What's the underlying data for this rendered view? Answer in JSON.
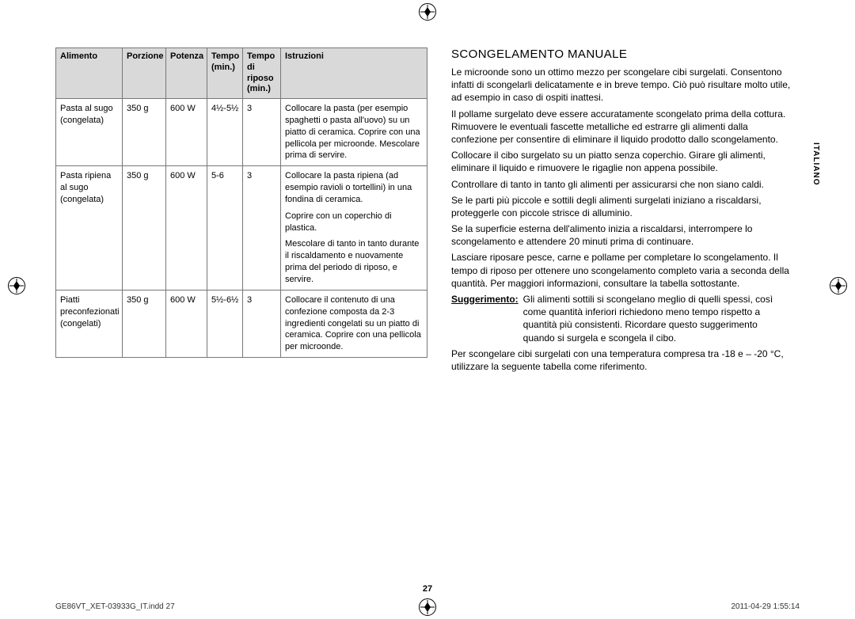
{
  "side_tab": "ITALIANO",
  "page_number": "27",
  "footer_left": "GE86VT_XET-03933G_IT.indd   27",
  "footer_right": "2011-04-29   1:55:14",
  "table": {
    "headers": {
      "alimento": "Alimento",
      "porzione": "Porzione",
      "potenza": "Potenza",
      "tempo": "Tempo (min.)",
      "riposo": "Tempo di riposo (min.)",
      "istruzioni": "Istruzioni"
    },
    "rows": [
      {
        "alimento": "Pasta al sugo (congelata)",
        "porzione": "350 g",
        "potenza": "600 W",
        "tempo": "4½-5½",
        "riposo": "3",
        "istr": [
          "Collocare la pasta (per esempio spaghetti o pasta all'uovo) su un piatto di ceramica. Coprire con una pellicola per microonde. Mescolare prima di servire."
        ]
      },
      {
        "alimento": "Pasta ripiena al sugo (congelata)",
        "porzione": "350 g",
        "potenza": "600 W",
        "tempo": "5-6",
        "riposo": "3",
        "istr": [
          "Collocare la pasta ripiena (ad esempio ravioli o tortellini) in una fondina di ceramica.",
          "Coprire con un coperchio di plastica.",
          "Mescolare di tanto in tanto durante il riscaldamento e nuovamente prima del periodo di riposo, e servire."
        ]
      },
      {
        "alimento": "Piatti preconfezionati (congelati)",
        "porzione": "350 g",
        "potenza": "600 W",
        "tempo": "5½-6½",
        "riposo": "3",
        "istr": [
          "Collocare il contenuto di una confezione composta da 2-3 ingredienti congelati su un piatto di ceramica. Coprire con una pellicola per microonde."
        ]
      }
    ]
  },
  "right": {
    "title": "SCONGELAMENTO MANUALE",
    "paras": [
      "Le microonde sono un ottimo mezzo per scongelare cibi surgelati. Consentono infatti di scongelarli delicatamente e in breve tempo. Ciò può risultare molto utile, ad esempio in caso di ospiti inattesi.",
      "Il pollame surgelato deve essere accuratamente scongelato prima della cottura. Rimuovere le eventuali fascette metalliche ed estrarre gli alimenti dalla confezione per consentire di eliminare il liquido prodotto dallo scongelamento.",
      "Collocare il cibo surgelato su un piatto senza coperchio. Girare gli alimenti, eliminare il liquido e rimuovere le rigaglie non appena possibile.",
      "Controllare di tanto in tanto gli alimenti per assicurarsi che non siano caldi.",
      "Se le parti più piccole e sottili degli alimenti surgelati iniziano a riscaldarsi, proteggerle con piccole strisce di alluminio.",
      "Se la superficie esterna dell'alimento inizia a riscaldarsi, interrompere lo scongelamento e attendere 20 minuti prima di continuare.",
      "Lasciare riposare pesce, carne e pollame per completare lo scongelamento. Il tempo di riposo per ottenere uno scongelamento completo varia a seconda della quantità. Per maggiori informazioni, consultare la tabella sottostante."
    ],
    "suggest_label": "Suggerimento:",
    "suggest_text": "Gli alimenti sottili si scongelano meglio di quelli spessi, così come quantità inferiori richiedono meno tempo rispetto a quantità più consistenti. Ricordare questo suggerimento quando si surgela e scongela il cibo.",
    "after": [
      "Per scongelare cibi surgelati con una temperatura compresa tra -18 e – -20 °C, utilizzare la seguente tabella come riferimento."
    ]
  }
}
